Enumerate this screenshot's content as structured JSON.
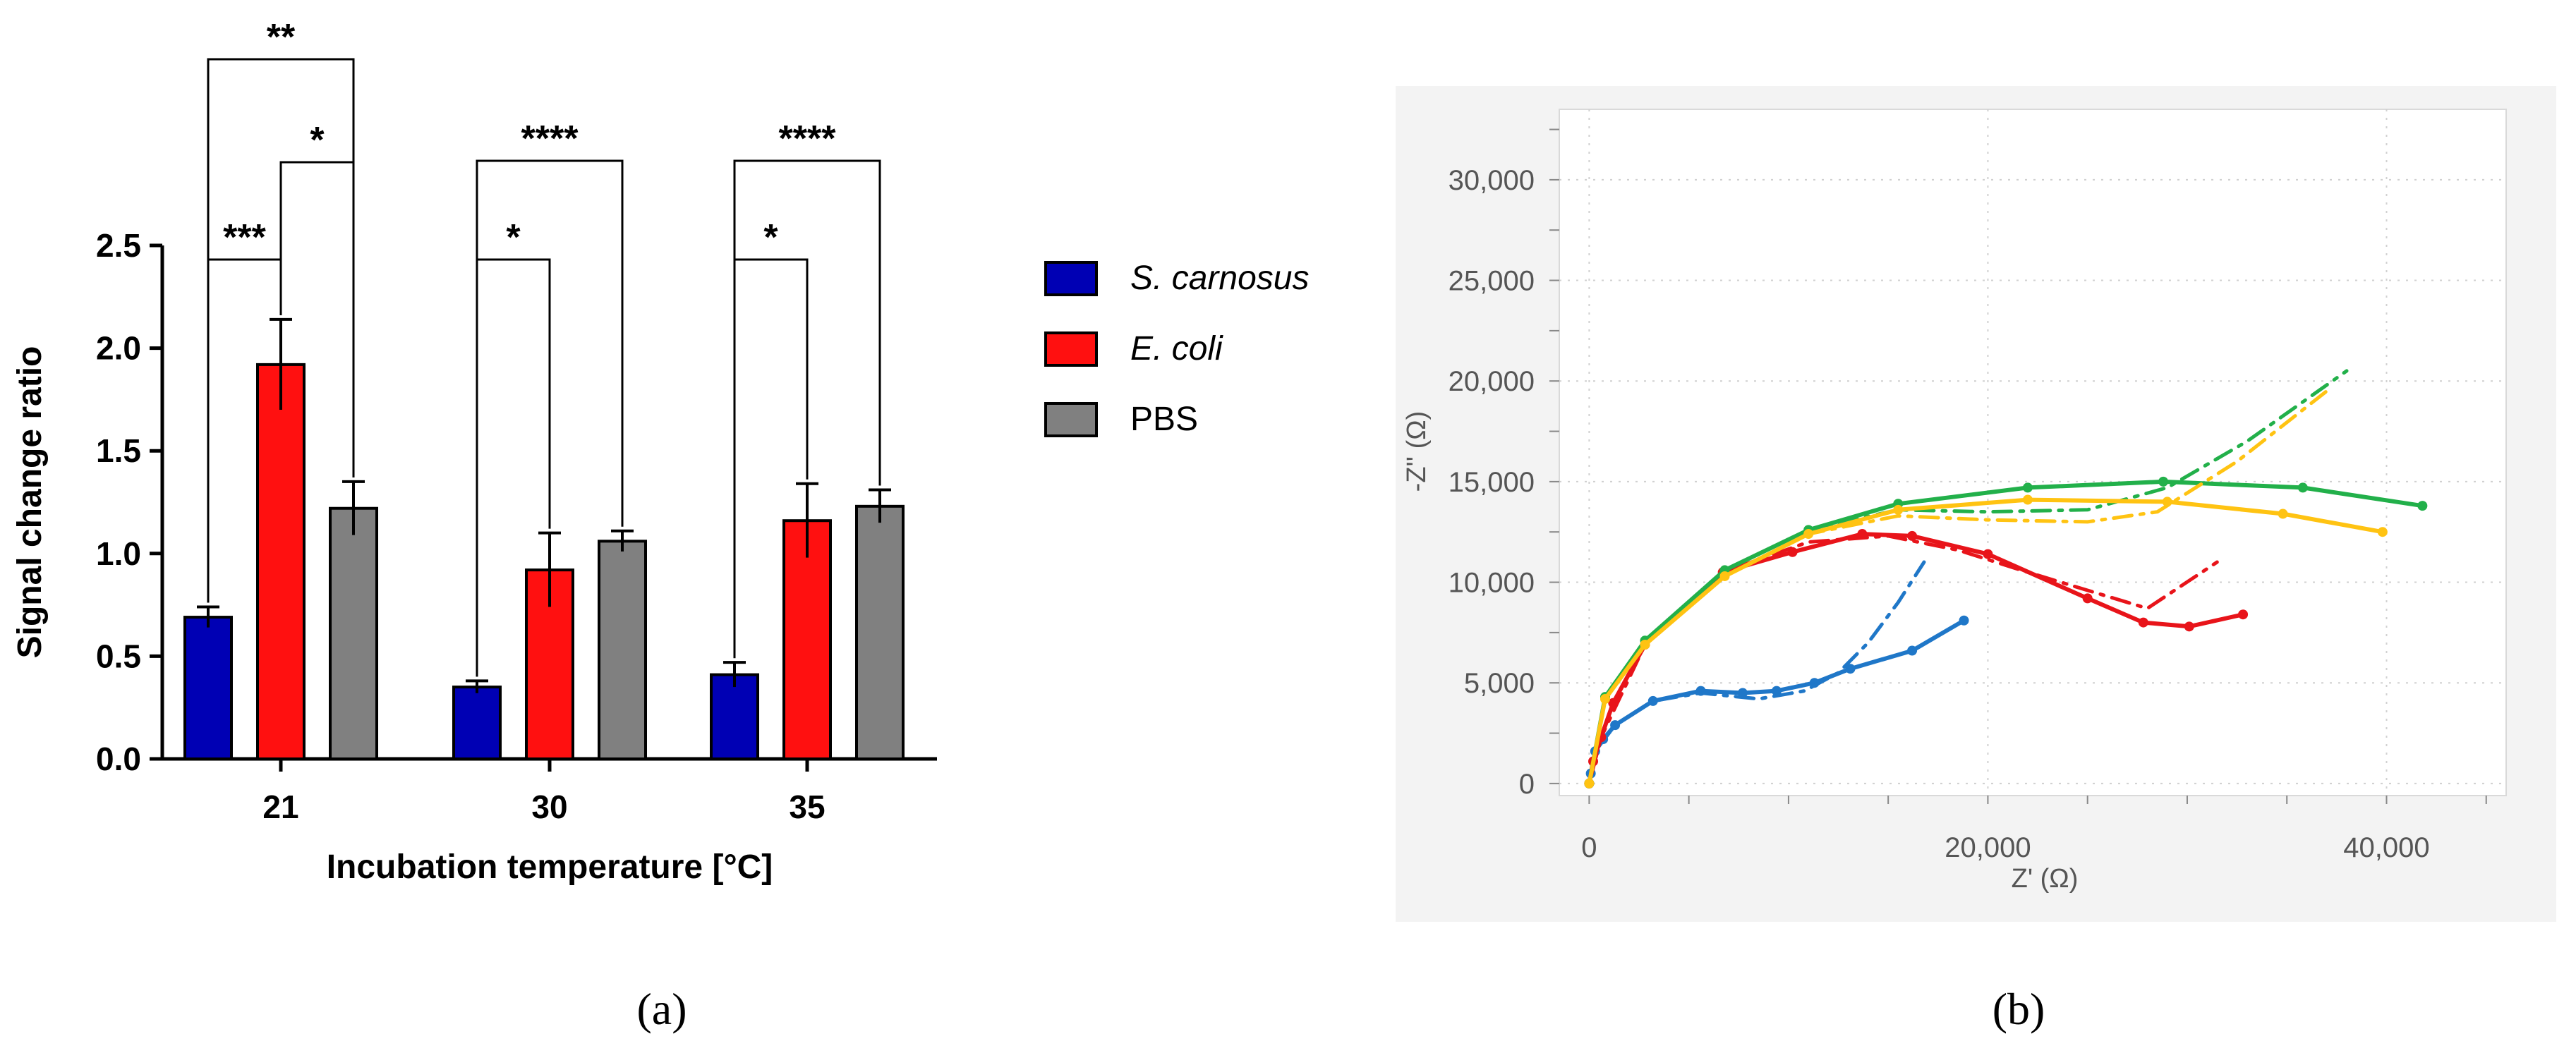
{
  "chart_data": [
    {
      "panel_label": "(a)",
      "type": "bar",
      "title": "",
      "xlabel": "Incubation temperature [°C]",
      "ylabel": "Signal change ratio",
      "ylim": [
        0,
        2.5
      ],
      "yticks": [
        "0.0",
        "0.5",
        "1.0",
        "1.5",
        "2.0",
        "2.5"
      ],
      "categories": [
        "21",
        "30",
        "35"
      ],
      "legend_position": "right",
      "series": [
        {
          "name": "S. carnosus",
          "italic": true,
          "color": "#0000b4",
          "values": [
            0.69,
            0.35,
            0.41
          ],
          "errors": [
            0.05,
            0.03,
            0.06
          ]
        },
        {
          "name": "E. coli",
          "italic": true,
          "color": "#ff1010",
          "values": [
            1.92,
            0.92,
            1.16
          ],
          "errors": [
            0.22,
            0.18,
            0.18
          ]
        },
        {
          "name": "PBS",
          "italic": false,
          "color": "#808080",
          "values": [
            1.22,
            1.06,
            1.23
          ],
          "errors": [
            0.13,
            0.05,
            0.08
          ]
        }
      ],
      "significance": [
        {
          "group": 0,
          "from": 0,
          "to": 2,
          "label": "**"
        },
        {
          "group": 0,
          "from": 1,
          "to": 2,
          "label": "*"
        },
        {
          "group": 0,
          "from": 0,
          "to": 1,
          "label": "***"
        },
        {
          "group": 1,
          "from": 0,
          "to": 2,
          "label": "****"
        },
        {
          "group": 1,
          "from": 0,
          "to": 1,
          "label": "*"
        },
        {
          "group": 2,
          "from": 0,
          "to": 2,
          "label": "****"
        },
        {
          "group": 2,
          "from": 0,
          "to": 1,
          "label": "*"
        }
      ]
    },
    {
      "panel_label": "(b)",
      "type": "line",
      "title": "",
      "xlabel": "Z' (Ω)",
      "ylabel": "-Z'' (Ω)",
      "xlim": [
        -1500,
        46000
      ],
      "ylim": [
        -600,
        33500
      ],
      "xticks": [
        {
          "value": 0,
          "label": "0"
        },
        {
          "value": 20000,
          "label": "20,000"
        },
        {
          "value": 40000,
          "label": "40,000"
        }
      ],
      "yticks": [
        {
          "value": 0,
          "label": "0"
        },
        {
          "value": 5000,
          "label": "5,000"
        },
        {
          "value": 10000,
          "label": "10,000"
        },
        {
          "value": 15000,
          "label": "15,000"
        },
        {
          "value": 20000,
          "label": "20,000"
        },
        {
          "value": 25000,
          "label": "25,000"
        },
        {
          "value": 30000,
          "label": "30,000"
        }
      ],
      "grid": true,
      "series": [
        {
          "name": "blue measured",
          "color": "#1f77c8",
          "style": "solid",
          "markers": true,
          "x": [
            0,
            80,
            300,
            700,
            1300,
            3200,
            5600,
            7700,
            9400,
            11300,
            13100,
            16200,
            18800
          ],
          "y": [
            0,
            500,
            1600,
            2200,
            2900,
            4100,
            4600,
            4500,
            4600,
            5000,
            5700,
            6600,
            8100
          ]
        },
        {
          "name": "blue fit",
          "color": "#1f77c8",
          "style": "dashdot",
          "markers": false,
          "x": [
            0,
            300,
            1300,
            3200,
            5600,
            8500,
            10800,
            12500,
            14000,
            15500,
            16800
          ],
          "y": [
            0,
            1600,
            2900,
            4100,
            4500,
            4200,
            4600,
            5500,
            7000,
            9000,
            11000
          ]
        },
        {
          "name": "red measured",
          "color": "#e8141a",
          "style": "solid",
          "markers": true,
          "x": [
            0,
            200,
            600,
            1200,
            2800,
            6700,
            10200,
            13700,
            16200,
            20000,
            25000,
            27800,
            30100,
            32800
          ],
          "y": [
            0,
            1100,
            2300,
            4000,
            6900,
            10500,
            11500,
            12400,
            12300,
            11400,
            9200,
            8000,
            7800,
            8400
          ]
        },
        {
          "name": "red fit",
          "color": "#e8141a",
          "style": "dashdot",
          "markers": false,
          "x": [
            0,
            600,
            2800,
            6700,
            11000,
            15000,
            18500,
            22000,
            25000,
            28000,
            31500
          ],
          "y": [
            0,
            2300,
            6900,
            10500,
            12000,
            12300,
            11600,
            10500,
            9600,
            8700,
            11000
          ]
        },
        {
          "name": "green measured",
          "color": "#22b04a",
          "style": "solid",
          "markers": true,
          "x": [
            0,
            800,
            2800,
            6800,
            11000,
            15500,
            22000,
            28800,
            35800,
            41800
          ],
          "y": [
            0,
            4300,
            7100,
            10600,
            12600,
            13900,
            14700,
            15000,
            14700,
            13800
          ]
        },
        {
          "name": "green fit",
          "color": "#22b04a",
          "style": "dashdot",
          "markers": false,
          "x": [
            0,
            800,
            2800,
            6800,
            11000,
            15500,
            20000,
            25000,
            29000,
            33000,
            38000
          ],
          "y": [
            0,
            4300,
            7100,
            10600,
            12600,
            13600,
            13500,
            13600,
            14700,
            17000,
            20500
          ]
        },
        {
          "name": "yellow measured",
          "color": "#ffc312",
          "style": "solid",
          "markers": true,
          "x": [
            0,
            800,
            2800,
            6800,
            11000,
            15500,
            22000,
            29000,
            34800,
            39800
          ],
          "y": [
            0,
            4200,
            6900,
            10300,
            12400,
            13600,
            14100,
            14000,
            13400,
            12500
          ]
        },
        {
          "name": "yellow fit",
          "color": "#ffc312",
          "style": "dashdot",
          "markers": false,
          "x": [
            0,
            800,
            2800,
            6800,
            11000,
            15500,
            20000,
            25000,
            28500,
            32500,
            37000
          ],
          "y": [
            0,
            4200,
            6900,
            10300,
            12400,
            13300,
            13100,
            13000,
            13500,
            16000,
            19500
          ]
        }
      ]
    }
  ]
}
